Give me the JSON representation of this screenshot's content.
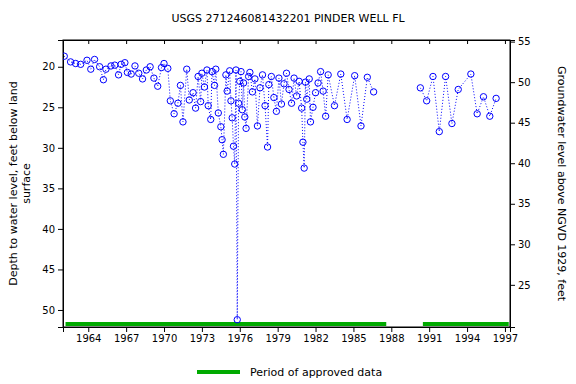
{
  "chart_data": {
    "type": "scatter",
    "title": "USGS 271246081432201 PINDER WELL FL",
    "y_label": [
      "Depth to water level, feet below land",
      "surface"
    ],
    "y2_label": "Groundwater level above NGVD 1929, feet",
    "xlim": [
      1962.0,
      1997.4
    ],
    "xticks": [
      1964,
      1967,
      1970,
      1973,
      1976,
      1979,
      1982,
      1985,
      1988,
      1991,
      1994,
      1997
    ],
    "ylim": [
      52.1,
      16.7
    ],
    "yticks": [
      20,
      25,
      30,
      35,
      40,
      45,
      50
    ],
    "y2lim": [
      19.8,
      55.2
    ],
    "y2ticks": [
      25,
      30,
      35,
      40,
      45,
      50,
      55
    ],
    "grid": false,
    "series": [
      {
        "color": "#0000ff",
        "marker": "circle",
        "line_style": "dotted",
        "x": [
          1962.1,
          1962.6,
          1963.0,
          1963.4,
          1963.9,
          1964.2,
          1964.5,
          1964.9,
          1965.2,
          1965.4,
          1965.8,
          1966.1,
          1966.4,
          1966.6,
          1966.9,
          1967.1,
          1967.4,
          1967.7,
          1968.0,
          1968.3,
          1968.6,
          1968.9,
          1969.2,
          1969.5,
          1969.8,
          1970.0,
          1970.3,
          1970.5,
          1970.8,
          1971.1,
          1971.3,
          1971.5,
          1971.8,
          1972.0,
          1972.3,
          1972.5,
          1972.7,
          1972.9,
          1973.0,
          1973.2,
          1973.4,
          1973.5,
          1973.7,
          1973.8,
          1974.0,
          1974.1,
          1974.3,
          1974.5,
          1974.6,
          1974.7,
          1974.9,
          1975.0,
          1975.2,
          1975.3,
          1975.4,
          1975.5,
          1975.6,
          1975.7,
          1975.8,
          1975.9,
          1976.0,
          1976.1,
          1976.2,
          1976.3,
          1976.4,
          1976.5,
          1976.7,
          1976.8,
          1977.0,
          1977.2,
          1977.4,
          1977.6,
          1977.8,
          1978.0,
          1978.2,
          1978.3,
          1978.5,
          1978.7,
          1978.9,
          1979.1,
          1979.3,
          1979.5,
          1979.7,
          1979.9,
          1980.1,
          1980.3,
          1980.5,
          1980.7,
          1980.9,
          1981.0,
          1981.1,
          1981.2,
          1981.3,
          1981.5,
          1981.6,
          1981.8,
          1982.0,
          1982.2,
          1982.4,
          1982.6,
          1982.8,
          1983.0,
          1983.5,
          1984.0,
          1984.5,
          1985.1,
          1985.6,
          1986.1,
          1986.6,
          1988.5,
          1990.3,
          1990.8,
          1991.3,
          1991.8,
          1992.3,
          1992.8,
          1993.3,
          1994.3,
          1994.8,
          1995.3,
          1995.8,
          1996.3
        ],
        "values": [
          18.7,
          19.4,
          19.6,
          19.7,
          19.2,
          20.3,
          19.1,
          20.0,
          21.6,
          20.3,
          19.9,
          19.8,
          21.0,
          19.7,
          19.5,
          20.7,
          20.9,
          19.9,
          20.8,
          21.5,
          20.4,
          20.0,
          21.4,
          22.4,
          20.1,
          19.6,
          20.2,
          24.2,
          25.8,
          24.5,
          22.3,
          26.8,
          20.3,
          24.1,
          23.2,
          25.1,
          21.2,
          24.3,
          20.8,
          22.5,
          20.4,
          24.8,
          26.5,
          20.6,
          22.3,
          20.3,
          25.7,
          27.4,
          29.0,
          30.8,
          21.0,
          23.0,
          20.5,
          24.2,
          26.3,
          29.8,
          32.0,
          20.4,
          51.2,
          24.5,
          21.8,
          20.6,
          25.3,
          22.0,
          26.2,
          27.6,
          21.2,
          20.7,
          23.1,
          21.5,
          27.3,
          22.6,
          21.0,
          24.8,
          29.9,
          22.2,
          21.2,
          23.8,
          25.5,
          21.4,
          24.6,
          22.1,
          20.8,
          22.8,
          24.5,
          21.4,
          23.6,
          21.8,
          25.1,
          29.3,
          32.5,
          21.9,
          24.0,
          21.5,
          26.8,
          25.0,
          23.2,
          22.0,
          20.6,
          23.0,
          26.1,
          21.0,
          24.8,
          20.9,
          26.5,
          21.1,
          27.3,
          21.3,
          23.1,
          null,
          22.6,
          24.2,
          21.2,
          28.0,
          21.2,
          27.0,
          22.8,
          20.9,
          25.8,
          23.7,
          26.1,
          23.9
        ]
      }
    ],
    "approved_periods": {
      "name": "Period of approved data",
      "color": "#00aa00",
      "ranges": [
        [
          1962.2,
          1987.6
        ],
        [
          1990.5,
          1997.3
        ]
      ]
    }
  }
}
